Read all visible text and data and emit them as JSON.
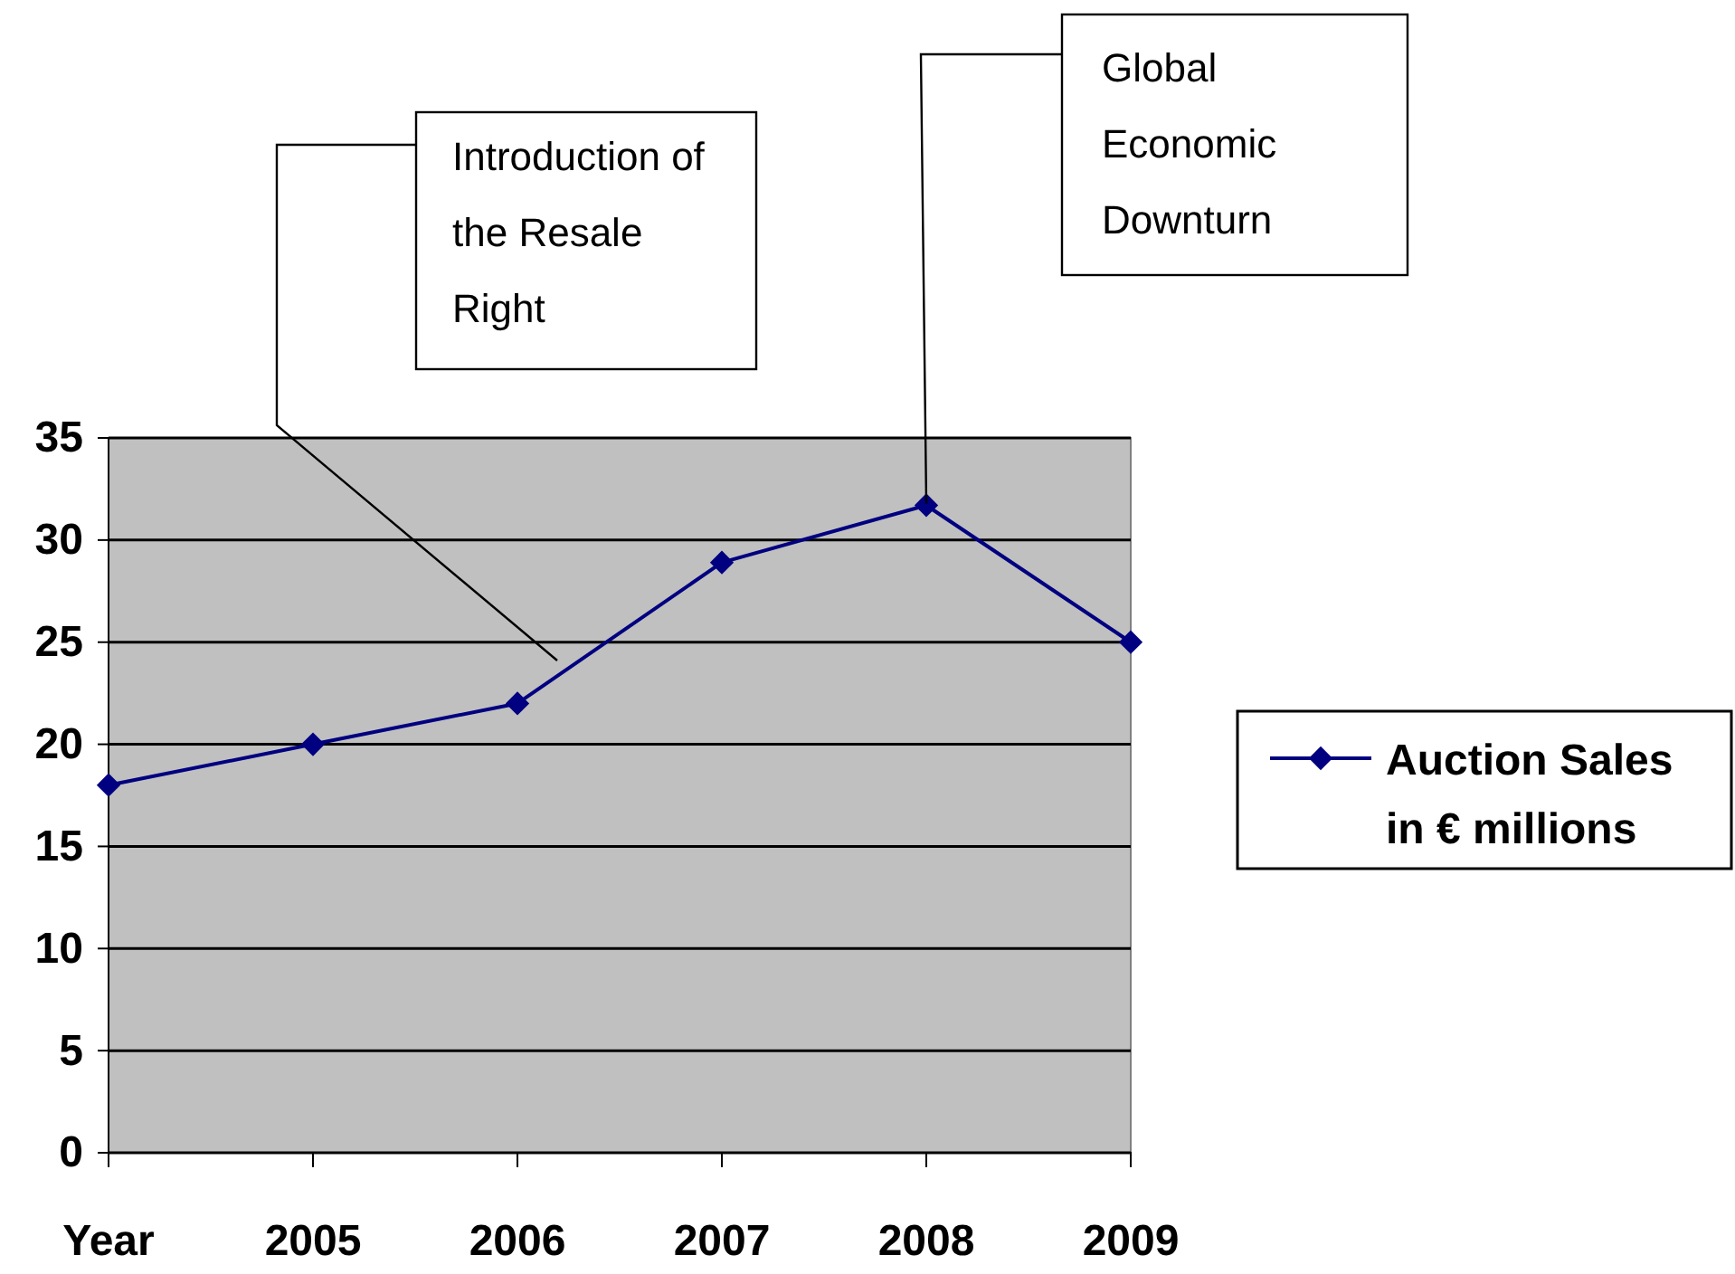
{
  "chart_data": {
    "type": "line",
    "categories": [
      "Year",
      "2005",
      "2006",
      "2007",
      "2008",
      "2009"
    ],
    "series": [
      {
        "name": "Auction Sales in € millions",
        "color": "#000080",
        "values": [
          18,
          20,
          22,
          28.9,
          31.7,
          25
        ]
      }
    ],
    "ylim": [
      0,
      35
    ],
    "yticks": [
      0,
      5,
      10,
      15,
      20,
      25,
      30,
      35
    ],
    "grid": "y",
    "legend": "right",
    "marker": "diamond",
    "line_style": "solid",
    "annotations": [
      "Introduction of the Resale Right",
      {
        "text": "Global Economic Downturn",
        "x": "2008",
        "y": 31.7
      }
    ]
  }
}
